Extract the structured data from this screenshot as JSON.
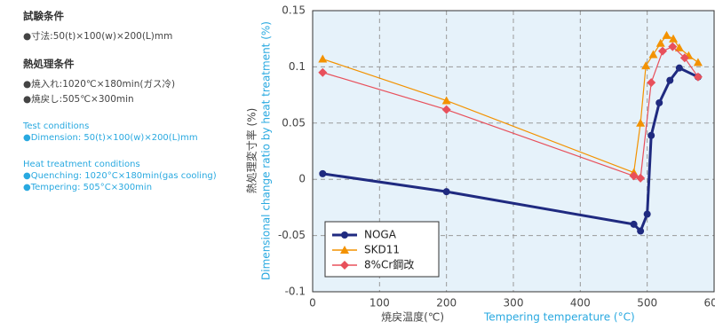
{
  "side_text": {
    "jp_test_title": "試験条件",
    "jp_test_lines": [
      "●寸法:50(t)×100(w)×200(L)mm"
    ],
    "jp_heat_title": "熱処理条件",
    "jp_heat_lines": [
      "●焼入れ:1020℃×180min(ガス冷)",
      "●焼戻し:505℃×300min"
    ],
    "en_test_title": "Test conditions",
    "en_test_lines": [
      "●Dimension: 50(t)×100(w)×200(L)mm"
    ],
    "en_heat_title": "Heat treatment conditions",
    "en_heat_lines": [
      "●Quenching: 1020°C×180min(gas cooling)",
      "●Tempering: 505°C×300min"
    ]
  },
  "chart_data": {
    "type": "line",
    "x_label": "焼戻温度(℃)",
    "x_label_en": "Tempering temperature (°C)",
    "y_label": "熱処理変寸率 (%)",
    "y_label_en": "Dimensional change ratio by heat treatment (%)",
    "xlim": [
      0,
      600
    ],
    "xticks": [
      0,
      100,
      200,
      300,
      400,
      500,
      600
    ],
    "ylim": [
      -0.1,
      0.15
    ],
    "yticks": [
      -0.1,
      -0.05,
      0,
      0.05,
      0.1,
      0.15
    ],
    "grid": true,
    "legend": "lower left",
    "series": [
      {
        "name": "NOGA",
        "color": "#1f2a80",
        "marker": "circle",
        "x": [
          15,
          200,
          480,
          490,
          500,
          506,
          518,
          534,
          548,
          576
        ],
        "values": [
          0.005,
          -0.011,
          -0.04,
          -0.046,
          -0.031,
          0.039,
          0.068,
          0.088,
          0.099,
          0.091
        ]
      },
      {
        "name": "SKD11",
        "color": "#f39200",
        "marker": "triangle",
        "x": [
          15,
          200,
          480,
          490,
          498,
          509,
          520,
          529,
          539,
          548,
          562,
          576
        ],
        "values": [
          0.107,
          0.07,
          0.006,
          0.05,
          0.101,
          0.111,
          0.121,
          0.128,
          0.125,
          0.117,
          0.11,
          0.104
        ]
      },
      {
        "name": "8%Cr鋼改",
        "color": "#e8505b",
        "marker": "diamond",
        "x": [
          15,
          200,
          480,
          490,
          506,
          523,
          538,
          556,
          576
        ],
        "values": [
          0.095,
          0.062,
          0.003,
          0.001,
          0.086,
          0.114,
          0.118,
          0.108,
          0.091
        ]
      }
    ]
  }
}
